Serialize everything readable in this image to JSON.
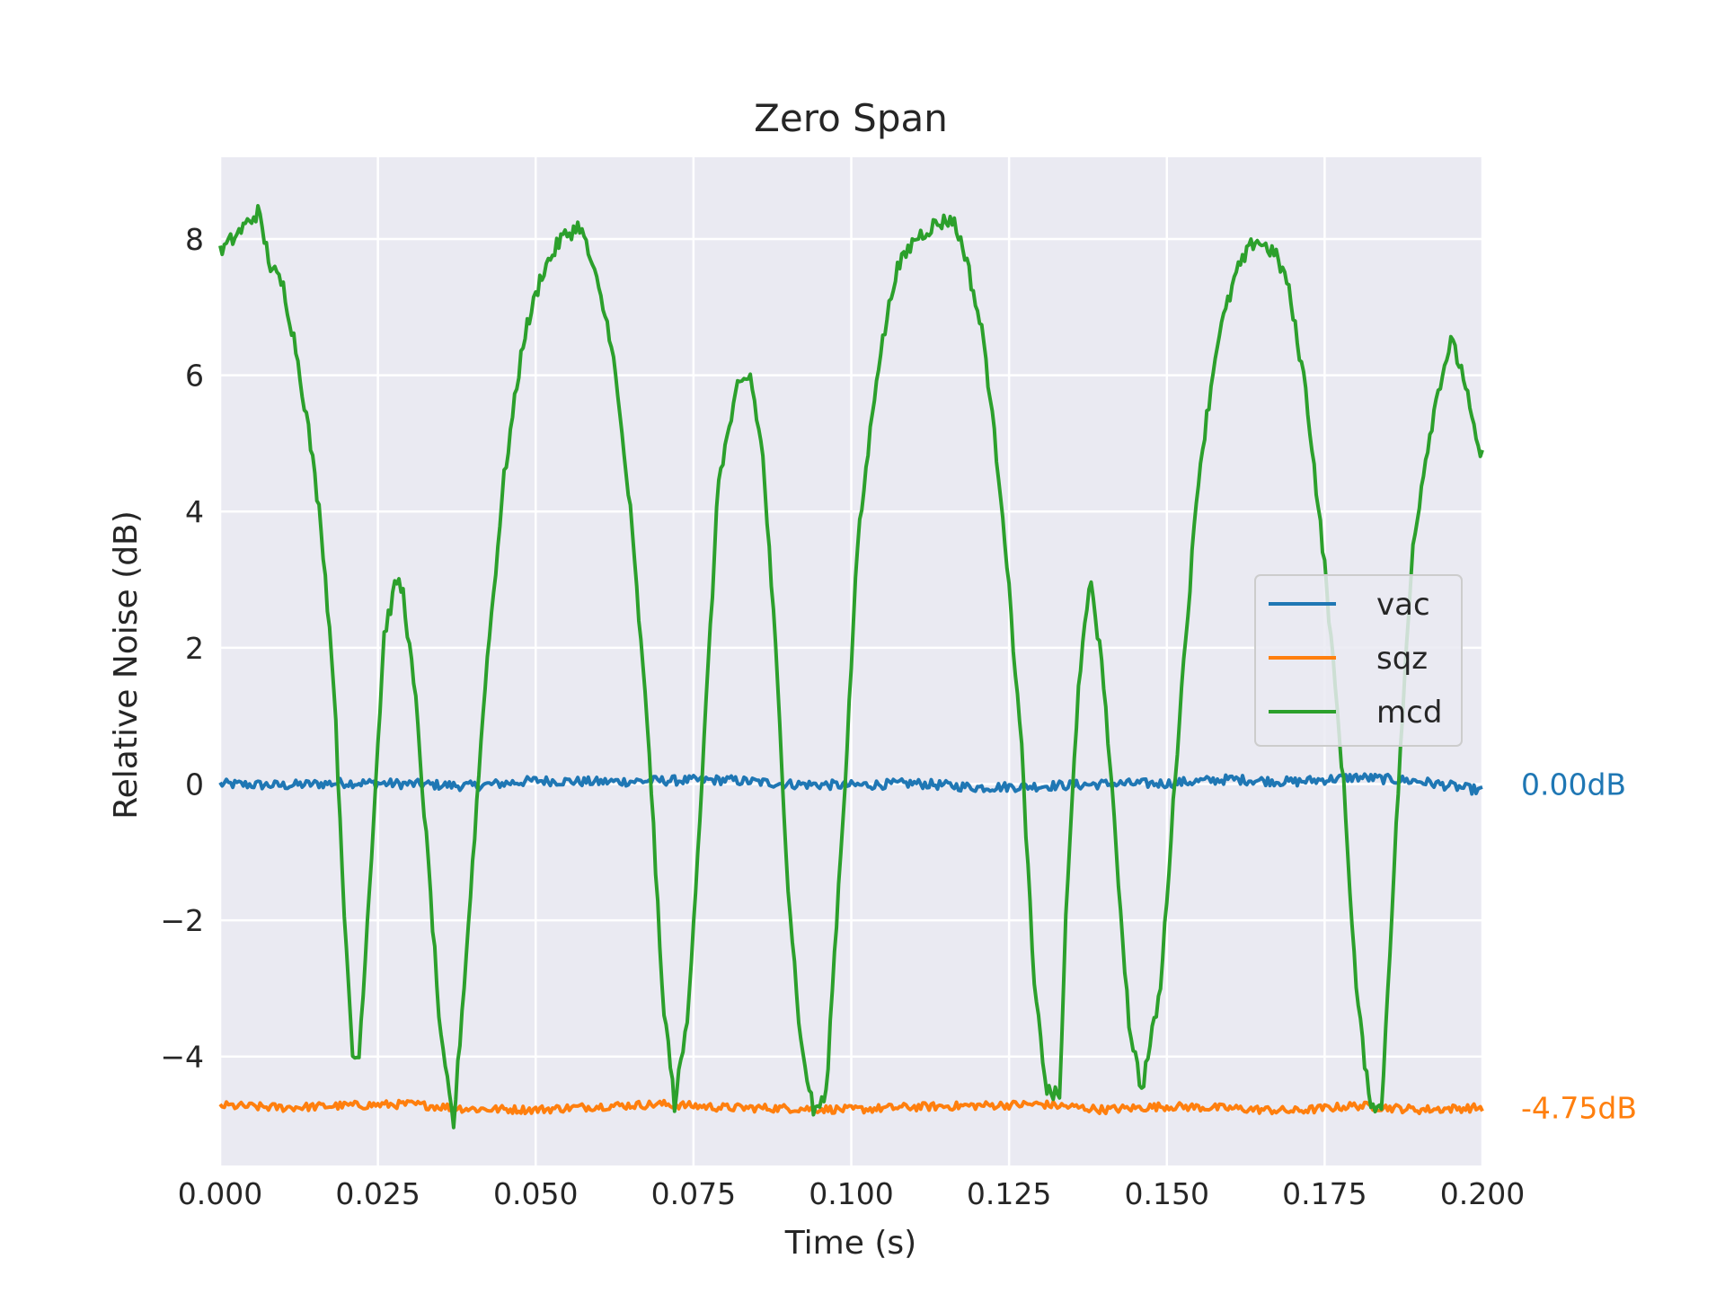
{
  "chart_data": {
    "type": "line",
    "title": "Zero Span",
    "xlabel": "Time (s)",
    "ylabel": "Relative Noise (dB)",
    "xlim": [
      0,
      0.2
    ],
    "ylim": [
      -5.6,
      9.2
    ],
    "xticks": [
      0.0,
      0.025,
      0.05,
      0.075,
      0.1,
      0.125,
      0.15,
      0.175,
      0.2
    ],
    "xtick_labels": [
      "0.000",
      "0.025",
      "0.050",
      "0.075",
      "0.100",
      "0.125",
      "0.150",
      "0.175",
      "0.200"
    ],
    "yticks": [
      -4,
      -2,
      0,
      2,
      4,
      6,
      8
    ],
    "ytick_labels": [
      "−4",
      "−2",
      "0",
      "2",
      "4",
      "6",
      "8"
    ],
    "grid": true,
    "legend_position": "center-right",
    "background": "#eaeaf2",
    "series": [
      {
        "name": "vac",
        "color": "#1f77b4",
        "level": 0.0,
        "x": [
          0.0,
          0.01,
          0.02,
          0.03,
          0.04,
          0.05,
          0.06,
          0.07,
          0.08,
          0.09,
          0.1,
          0.11,
          0.12,
          0.13,
          0.14,
          0.15,
          0.16,
          0.17,
          0.18,
          0.19,
          0.2
        ],
        "y": [
          0.0,
          -0.02,
          0.02,
          0.0,
          -0.03,
          0.05,
          0.03,
          0.05,
          0.06,
          0.0,
          -0.02,
          0.01,
          -0.05,
          -0.03,
          0.0,
          0.01,
          0.07,
          0.03,
          0.1,
          0.04,
          -0.1
        ]
      },
      {
        "name": "sqz",
        "color": "#ff7f0e",
        "level": -4.75,
        "x": [
          0.0,
          0.01,
          0.02,
          0.03,
          0.04,
          0.05,
          0.06,
          0.07,
          0.08,
          0.09,
          0.1,
          0.11,
          0.12,
          0.13,
          0.14,
          0.15,
          0.16,
          0.17,
          0.18,
          0.19,
          0.2
        ],
        "y": [
          -4.72,
          -4.75,
          -4.72,
          -4.7,
          -4.77,
          -4.78,
          -4.73,
          -4.7,
          -4.75,
          -4.76,
          -4.78,
          -4.74,
          -4.72,
          -4.7,
          -4.78,
          -4.73,
          -4.76,
          -4.8,
          -4.72,
          -4.78,
          -4.75
        ]
      },
      {
        "name": "mcd",
        "color": "#2ca02c",
        "x": [
          0.0,
          0.002,
          0.004,
          0.006,
          0.008,
          0.01,
          0.012,
          0.014,
          0.016,
          0.018,
          0.02,
          0.021,
          0.022,
          0.024,
          0.026,
          0.028,
          0.029,
          0.031,
          0.033,
          0.035,
          0.037,
          0.039,
          0.042,
          0.045,
          0.048,
          0.051,
          0.054,
          0.057,
          0.059,
          0.062,
          0.065,
          0.068,
          0.07,
          0.072,
          0.074,
          0.076,
          0.079,
          0.082,
          0.084,
          0.086,
          0.088,
          0.09,
          0.092,
          0.094,
          0.096,
          0.097,
          0.099,
          0.101,
          0.104,
          0.107,
          0.11,
          0.113,
          0.116,
          0.118,
          0.121,
          0.124,
          0.127,
          0.129,
          0.131,
          0.133,
          0.134,
          0.136,
          0.138,
          0.14,
          0.142,
          0.144,
          0.146,
          0.149,
          0.152,
          0.155,
          0.158,
          0.161,
          0.164,
          0.167,
          0.169,
          0.172,
          0.175,
          0.178,
          0.18,
          0.182,
          0.184,
          0.185,
          0.187,
          0.189,
          0.191,
          0.193,
          0.195,
          0.197,
          0.199,
          0.2
        ],
        "y": [
          7.8,
          8.0,
          8.2,
          8.4,
          7.6,
          7.3,
          6.4,
          5.2,
          3.8,
          1.5,
          -2.5,
          -4.0,
          -4.0,
          -1.0,
          2.2,
          3.0,
          2.8,
          1.2,
          -1.2,
          -3.8,
          -5.0,
          -2.5,
          1.5,
          4.5,
          6.5,
          7.5,
          8.0,
          8.2,
          7.6,
          6.5,
          4.0,
          0.5,
          -3.0,
          -4.7,
          -3.5,
          -0.5,
          4.5,
          5.8,
          6.0,
          4.8,
          2.0,
          -1.5,
          -3.8,
          -4.8,
          -4.6,
          -3.0,
          0.0,
          3.5,
          6.0,
          7.5,
          8.0,
          8.2,
          8.3,
          7.8,
          6.5,
          4.0,
          0.5,
          -3.0,
          -4.5,
          -4.6,
          -2.0,
          1.5,
          3.0,
          1.5,
          -1.0,
          -3.5,
          -4.5,
          -3.0,
          1.0,
          4.5,
          6.5,
          7.5,
          8.0,
          7.8,
          7.4,
          5.8,
          3.2,
          0.0,
          -3.0,
          -4.6,
          -4.8,
          -3.0,
          0.5,
          3.5,
          4.8,
          5.8,
          6.5,
          6.0,
          5.0,
          4.8
        ]
      }
    ],
    "annotations": [
      {
        "text": "0.00dB",
        "y": 0.0,
        "color": "#1f77b4"
      },
      {
        "text": "-4.75dB",
        "y": -4.75,
        "color": "#ff7f0e"
      }
    ]
  }
}
